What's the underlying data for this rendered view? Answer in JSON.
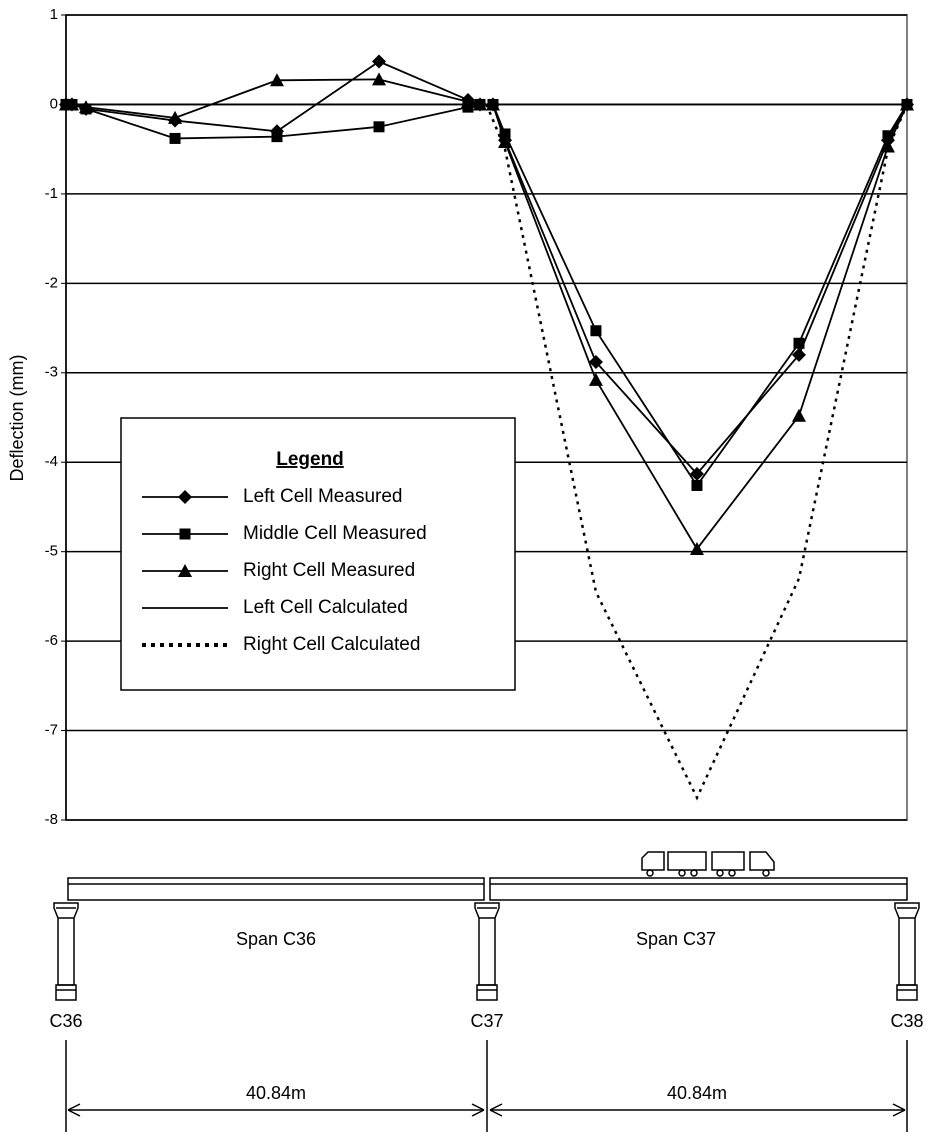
{
  "chart_data": {
    "type": "line",
    "y_label": "Deflection (mm)",
    "x": [
      0,
      0.58,
      1.94,
      10.59,
      20.49,
      30.4,
      39.04,
      40.21,
      41.47,
      42.64,
      51.47,
      61.28,
      71.19,
      79.83,
      81.68
    ],
    "xlim": [
      0,
      81.68
    ],
    "ylim": [
      -8,
      1
    ],
    "yticks": [
      1,
      0,
      -1,
      -2,
      -3,
      -4,
      -5,
      -6,
      -7,
      -8
    ],
    "grid": true,
    "legend_title": "Legend",
    "series": [
      {
        "name": "Left Cell Measured",
        "color": "#000000",
        "marker": "diamond",
        "dash": "solid",
        "values": [
          0,
          0,
          -0.05,
          -0.18,
          -0.3,
          0.48,
          0.05,
          0,
          0,
          -0.4,
          -2.88,
          -4.13,
          -2.8,
          -0.4,
          0
        ]
      },
      {
        "name": "Middle Cell Measured",
        "color": "#000000",
        "marker": "square",
        "dash": "solid",
        "values": [
          0,
          0,
          -0.05,
          -0.38,
          -0.36,
          -0.25,
          -0.03,
          0,
          0,
          -0.33,
          -2.53,
          -4.26,
          -2.67,
          -0.35,
          0
        ]
      },
      {
        "name": "Right Cell Measured",
        "color": "#000000",
        "marker": "triangle",
        "dash": "solid",
        "values": [
          0,
          0,
          -0.03,
          -0.15,
          0.27,
          0.28,
          0.03,
          0,
          0,
          -0.42,
          -3.08,
          -4.97,
          -3.48,
          -0.47,
          0
        ]
      },
      {
        "name": "Left Cell Calculated",
        "color": "#000000",
        "marker": "none",
        "dash": "solid",
        "x": [
          0,
          81.68
        ],
        "values": [
          0,
          0
        ]
      },
      {
        "name": "Right Cell Calculated",
        "color": "#000000",
        "marker": "none",
        "dash": "dotted",
        "x": [
          40.84,
          42.64,
          51.47,
          61.28,
          71.19,
          79.83,
          81.68
        ],
        "values": [
          0,
          -0.5,
          -5.45,
          -7.75,
          -5.3,
          -0.5,
          0
        ]
      }
    ]
  },
  "diagram": {
    "spans": [
      "Span C36",
      "Span C37"
    ],
    "piers": [
      "C36",
      "C37",
      "C38"
    ],
    "lengths": [
      "40.84m",
      "40.84m"
    ]
  }
}
